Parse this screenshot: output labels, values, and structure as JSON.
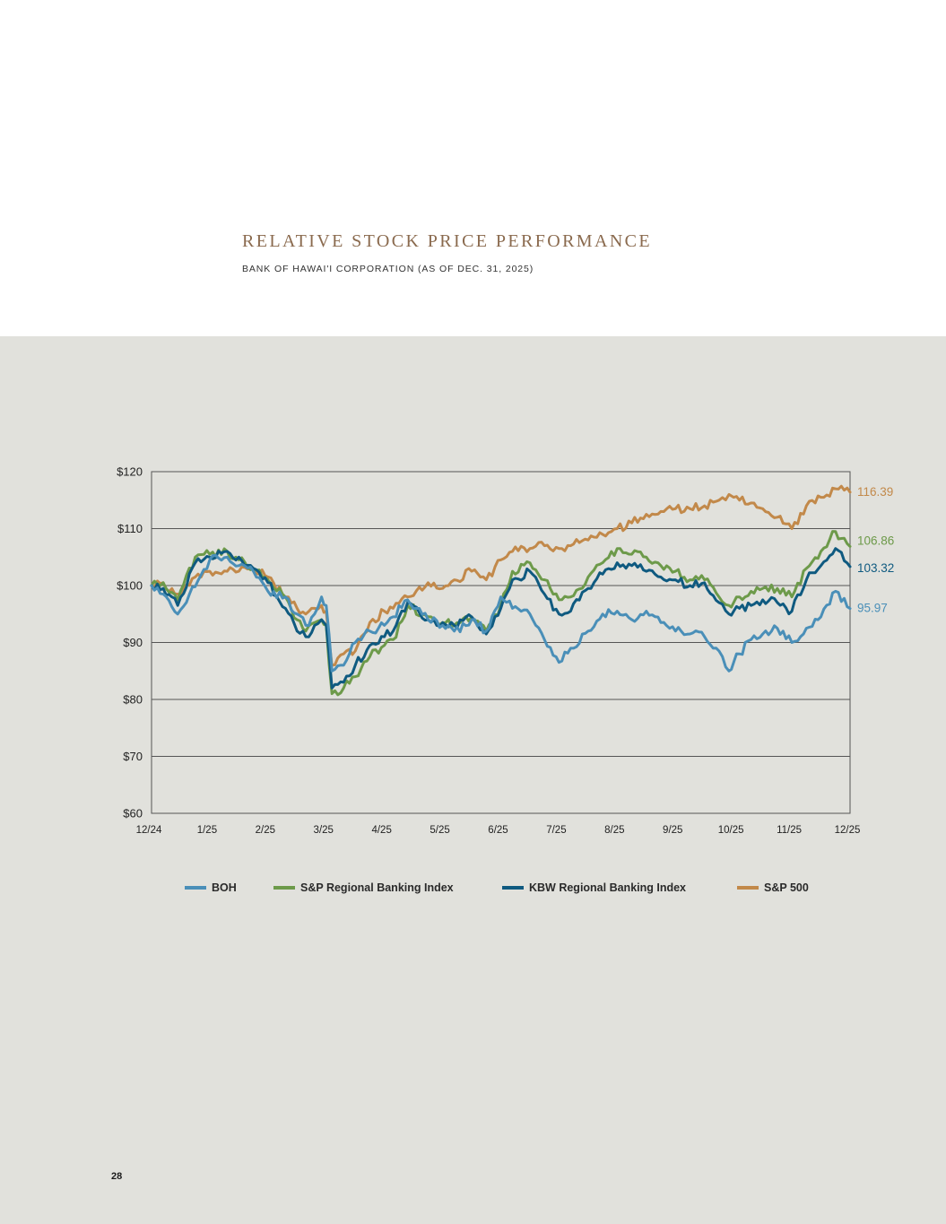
{
  "header": {
    "title": "RELATIVE STOCK PRICE PERFORMANCE",
    "subtitle": "BANK OF HAWAI'I CORPORATION (AS OF DEC. 31, 2025)"
  },
  "page_number": "28",
  "colors": {
    "background": "#ffffff",
    "panel": "#e1e1dc",
    "title": "#8a6a4e",
    "gridline": "#555555"
  },
  "chart_data": {
    "type": "line",
    "title": "RELATIVE STOCK PRICE PERFORMANCE",
    "subtitle": "BANK OF HAWAI'I CORPORATION (AS OF DEC. 31, 2025)",
    "xlabel": "",
    "ylabel": "",
    "ylim": [
      60,
      120
    ],
    "y_ticks": [
      60,
      70,
      80,
      90,
      100,
      110,
      120
    ],
    "y_tick_labels": [
      "$60",
      "$70",
      "$80",
      "$90",
      "$100",
      "$110",
      "$120"
    ],
    "x_tick_labels": [
      "12/24",
      "1/25",
      "2/25",
      "3/25",
      "4/25",
      "5/25",
      "6/25",
      "7/25",
      "8/25",
      "9/25",
      "10/25",
      "11/25",
      "12/25"
    ],
    "x_range_months": [
      0,
      12
    ],
    "grid": "horizontal",
    "legend_position": "bottom",
    "end_labels": true,
    "series": [
      {
        "name": "BOH",
        "color": "#4a8fb8",
        "end_label": "95.97",
        "x": [
          0,
          0.2,
          0.45,
          0.75,
          1.0,
          1.3,
          1.5,
          1.75,
          2.0,
          2.3,
          2.5,
          2.65,
          2.8,
          2.92,
          3.0,
          3.1,
          3.3,
          3.5,
          3.75,
          4.0,
          4.15,
          4.4,
          4.75,
          5.0,
          5.2,
          5.5,
          5.75,
          6.0,
          6.2,
          6.5,
          6.75,
          7.0,
          7.2,
          7.5,
          7.75,
          8.0,
          8.25,
          8.5,
          8.75,
          9.0,
          9.25,
          9.5,
          9.75,
          9.92,
          10.0,
          10.1,
          10.3,
          10.5,
          10.75,
          11.0,
          11.25,
          11.5,
          11.75,
          12.0
        ],
        "values": [
          100.0,
          98.5,
          95.0,
          99.8,
          104.5,
          105.0,
          103.5,
          102.5,
          99.0,
          98.0,
          95.0,
          93.0,
          95.0,
          98.0,
          96.5,
          85.0,
          86.0,
          90.0,
          92.0,
          93.0,
          94.5,
          97.5,
          94.0,
          93.0,
          92.0,
          94.0,
          92.0,
          98.0,
          96.0,
          95.0,
          90.5,
          86.5,
          89.0,
          92.0,
          95.0,
          95.5,
          94.0,
          95.5,
          93.5,
          92.0,
          91.5,
          91.0,
          88.5,
          85.0,
          86.5,
          88.0,
          90.5,
          91.5,
          92.5,
          90.0,
          92.5,
          94.5,
          99.0,
          95.97
        ]
      },
      {
        "name": "S&P Regional Banking Index",
        "color": "#6d9a4a",
        "end_label": "106.86",
        "x": [
          0,
          0.2,
          0.45,
          0.75,
          1.0,
          1.3,
          1.5,
          1.75,
          2.0,
          2.3,
          2.5,
          2.65,
          2.8,
          2.92,
          3.0,
          3.1,
          3.3,
          3.5,
          3.75,
          4.0,
          4.15,
          4.4,
          4.75,
          5.0,
          5.2,
          5.5,
          5.75,
          6.0,
          6.2,
          6.5,
          6.75,
          7.0,
          7.2,
          7.5,
          7.75,
          8.0,
          8.25,
          8.5,
          8.75,
          9.0,
          9.25,
          9.5,
          9.75,
          9.92,
          10.0,
          10.1,
          10.3,
          10.5,
          10.75,
          11.0,
          11.25,
          11.5,
          11.75,
          12.0
        ],
        "values": [
          100.0,
          100.5,
          97.5,
          105.0,
          105.5,
          106.0,
          104.5,
          103.0,
          101.0,
          98.0,
          94.0,
          92.0,
          93.5,
          94.0,
          93.0,
          81.0,
          82.0,
          84.0,
          87.5,
          89.5,
          90.5,
          96.5,
          94.5,
          93.5,
          93.0,
          94.5,
          92.0,
          96.5,
          102.5,
          104.0,
          101.0,
          97.5,
          98.0,
          101.5,
          104.0,
          106.5,
          105.5,
          105.0,
          103.5,
          102.5,
          101.0,
          101.0,
          98.0,
          96.5,
          97.0,
          98.0,
          99.0,
          99.5,
          99.5,
          98.0,
          103.0,
          106.0,
          109.5,
          106.86
        ]
      },
      {
        "name": "KBW Regional Banking Index",
        "color": "#0f5a80",
        "end_label": "103.32",
        "x": [
          0,
          0.2,
          0.45,
          0.75,
          1.0,
          1.3,
          1.5,
          1.75,
          2.0,
          2.3,
          2.5,
          2.65,
          2.8,
          2.92,
          3.0,
          3.1,
          3.3,
          3.5,
          3.75,
          4.0,
          4.15,
          4.4,
          4.75,
          5.0,
          5.2,
          5.5,
          5.75,
          6.0,
          6.2,
          6.5,
          6.75,
          7.0,
          7.2,
          7.5,
          7.75,
          8.0,
          8.25,
          8.5,
          8.75,
          9.0,
          9.25,
          9.5,
          9.75,
          9.92,
          10.0,
          10.1,
          10.3,
          10.5,
          10.75,
          11.0,
          11.25,
          11.5,
          11.75,
          12.0
        ],
        "values": [
          100.0,
          99.5,
          96.5,
          104.0,
          105.0,
          106.0,
          105.0,
          103.0,
          100.5,
          96.0,
          92.0,
          91.0,
          93.0,
          94.0,
          93.0,
          82.0,
          83.0,
          86.0,
          89.5,
          91.0,
          92.0,
          97.0,
          94.0,
          93.5,
          93.0,
          94.5,
          91.5,
          96.0,
          101.0,
          102.5,
          98.5,
          95.0,
          95.5,
          99.5,
          102.0,
          104.0,
          103.5,
          102.5,
          101.5,
          101.0,
          100.0,
          100.5,
          97.0,
          95.0,
          95.5,
          96.0,
          96.5,
          97.5,
          97.0,
          95.5,
          101.0,
          103.5,
          106.5,
          103.32
        ]
      },
      {
        "name": "S&P 500",
        "color": "#c2894a",
        "end_label": "116.39",
        "x": [
          0,
          0.2,
          0.45,
          0.75,
          1.0,
          1.3,
          1.5,
          1.75,
          2.0,
          2.3,
          2.5,
          2.65,
          2.8,
          2.92,
          3.0,
          3.1,
          3.3,
          3.5,
          3.75,
          4.0,
          4.15,
          4.4,
          4.75,
          5.0,
          5.2,
          5.5,
          5.75,
          6.0,
          6.2,
          6.5,
          6.75,
          7.0,
          7.2,
          7.5,
          7.75,
          8.0,
          8.25,
          8.5,
          8.75,
          9.0,
          9.25,
          9.5,
          9.75,
          9.92,
          10.0,
          10.1,
          10.3,
          10.5,
          10.75,
          11.0,
          11.25,
          11.5,
          11.75,
          12.0
        ],
        "values": [
          100.0,
          100.5,
          98.5,
          101.5,
          102.5,
          102.5,
          102.5,
          103.0,
          101.5,
          98.0,
          96.0,
          95.0,
          96.0,
          96.5,
          95.5,
          86.0,
          88.0,
          88.5,
          93.5,
          95.5,
          96.0,
          98.0,
          100.5,
          99.5,
          101.0,
          102.5,
          101.0,
          104.5,
          106.0,
          106.5,
          107.0,
          106.5,
          107.0,
          108.0,
          109.0,
          110.0,
          111.0,
          112.5,
          113.0,
          113.5,
          113.5,
          114.0,
          115.0,
          116.0,
          115.5,
          115.0,
          114.5,
          113.5,
          112.0,
          110.0,
          114.0,
          115.5,
          117.0,
          116.39
        ]
      }
    ]
  }
}
